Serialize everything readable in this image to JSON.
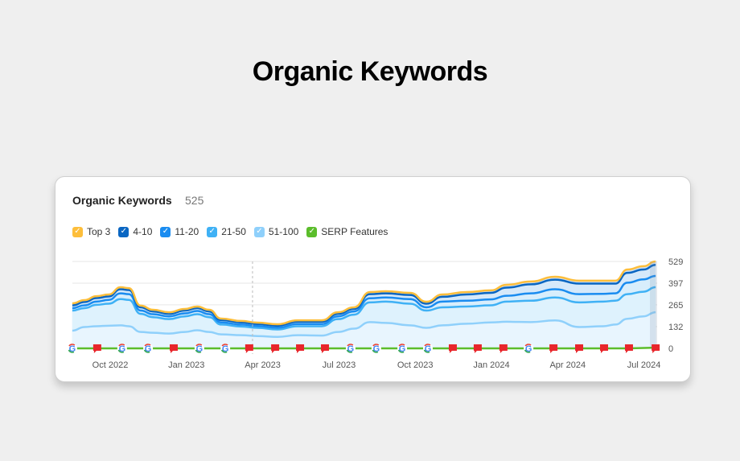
{
  "page_title": "Organic Keywords",
  "card": {
    "title": "Organic Keywords",
    "count": "525"
  },
  "legend": [
    {
      "label": "Top 3",
      "color": "#fdbe3b"
    },
    {
      "label": "4-10",
      "color": "#0a66c2"
    },
    {
      "label": "11-20",
      "color": "#1a8cf0"
    },
    {
      "label": "21-50",
      "color": "#3fb1f5"
    },
    {
      "label": "51-100",
      "color": "#8fd0fb"
    },
    {
      "label": "SERP Features",
      "color": "#5bbd2b"
    }
  ],
  "chart_data": {
    "type": "area",
    "title": "Organic Keywords",
    "x_unit": "months since Oct 2022",
    "x": [
      -1.49,
      -1.01,
      -0.54,
      -0.06,
      0.41,
      0.73,
      1.2,
      1.68,
      2.31,
      2.94,
      3.42,
      3.89,
      4.37,
      5.16,
      5.79,
      6.58,
      7.37,
      8.32,
      8.96,
      9.59,
      10.22,
      10.85,
      11.8,
      12.44,
      13.07,
      14.02,
      14.97,
      15.6,
      16.55,
      17.5,
      18.45,
      19.4,
      19.87,
      20.35,
      20.98,
      21.46
    ],
    "series": [
      {
        "name": "Top 3",
        "color": "#fdbe3b",
        "values": [
          274,
          294,
          318,
          328,
          372,
          367,
          260,
          235,
          220,
          240,
          255,
          235,
          181,
          167,
          157,
          147,
          171,
          171,
          220,
          250,
          343,
          348,
          338,
          284,
          328,
          343,
          353,
          387,
          407,
          436,
          412,
          412,
          412,
          480,
          500,
          529
        ]
      },
      {
        "name": "4-10",
        "color": "#0a66c2",
        "values": [
          262,
          282,
          306,
          316,
          360,
          355,
          250,
          225,
          210,
          230,
          245,
          225,
          172,
          158,
          148,
          138,
          162,
          162,
          210,
          240,
          330,
          335,
          325,
          272,
          314,
          328,
          338,
          370,
          390,
          418,
          394,
          394,
          394,
          460,
          480,
          508
        ]
      },
      {
        "name": "11-20",
        "color": "#1a8cf0",
        "values": [
          245,
          262,
          285,
          295,
          335,
          330,
          230,
          208,
          195,
          213,
          228,
          208,
          158,
          145,
          136,
          126,
          148,
          148,
          195,
          225,
          305,
          310,
          300,
          250,
          285,
          290,
          298,
          320,
          335,
          360,
          330,
          332,
          335,
          400,
          420,
          441
        ]
      },
      {
        "name": "21-50",
        "color": "#3fb1f5",
        "values": [
          230,
          245,
          265,
          272,
          300,
          295,
          210,
          190,
          178,
          195,
          208,
          190,
          145,
          133,
          125,
          115,
          135,
          135,
          178,
          205,
          280,
          285,
          272,
          230,
          250,
          255,
          262,
          285,
          290,
          310,
          280,
          285,
          290,
          330,
          345,
          372
        ]
      },
      {
        "name": "51-100",
        "color": "#8fd0fb",
        "values": [
          108,
          130,
          135,
          138,
          140,
          135,
          100,
          95,
          90,
          100,
          110,
          100,
          85,
          80,
          75,
          70,
          80,
          78,
          100,
          120,
          160,
          155,
          140,
          125,
          140,
          150,
          158,
          162,
          160,
          170,
          130,
          135,
          145,
          180,
          195,
          220
        ]
      }
    ],
    "serp_line": {
      "name": "SERP Features",
      "color": "#5bbd2b",
      "values_end": [
        0,
        4
      ]
    },
    "events": [
      {
        "type": "google",
        "x": -1.49
      },
      {
        "type": "flag",
        "x": -0.51
      },
      {
        "type": "google",
        "x": 0.47
      },
      {
        "type": "google",
        "x": 1.49
      },
      {
        "type": "flag",
        "x": 2.5
      },
      {
        "type": "google",
        "x": 3.51
      },
      {
        "type": "google",
        "x": 4.53
      },
      {
        "type": "flag",
        "x": 5.47
      },
      {
        "type": "flag",
        "x": 6.49
      },
      {
        "type": "flag",
        "x": 7.47
      },
      {
        "type": "flag",
        "x": 8.45
      },
      {
        "type": "google",
        "x": 9.46
      },
      {
        "type": "google",
        "x": 10.47
      },
      {
        "type": "google",
        "x": 11.49
      },
      {
        "type": "google",
        "x": 12.5
      },
      {
        "type": "flag",
        "x": 13.48
      },
      {
        "type": "flag",
        "x": 14.46
      },
      {
        "type": "flag",
        "x": 15.47
      },
      {
        "type": "google",
        "x": 16.46
      },
      {
        "type": "flag",
        "x": 17.44
      },
      {
        "type": "flag",
        "x": 18.45
      },
      {
        "type": "flag",
        "x": 19.43
      },
      {
        "type": "flag",
        "x": 20.41
      },
      {
        "type": "flag",
        "x": 21.46
      }
    ],
    "x_ticks": [
      {
        "label": "Oct 2022",
        "x": 0
      },
      {
        "label": "Jan 2023",
        "x": 3
      },
      {
        "label": "Apr 2023",
        "x": 6
      },
      {
        "label": "Jul 2023",
        "x": 9
      },
      {
        "label": "Oct 2023",
        "x": 12
      },
      {
        "label": "Jan 2024",
        "x": 15
      },
      {
        "label": "Apr 2024",
        "x": 18
      },
      {
        "label": "Jul 2024",
        "x": 21
      }
    ],
    "y_ticks": [
      "0",
      "132",
      "265",
      "397",
      "529"
    ],
    "ylim": [
      0,
      529
    ],
    "grid": true,
    "hover_x": 5.6
  }
}
